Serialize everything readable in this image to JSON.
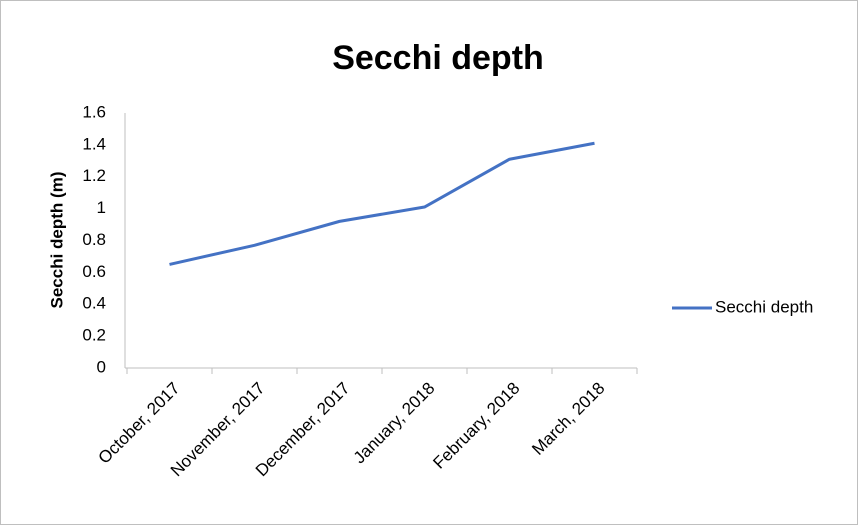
{
  "chart_data": {
    "type": "line",
    "title": "Secchi depth",
    "y_label": "Secchi depth (m)",
    "categories": [
      "October, 2017",
      "November, 2017",
      "December, 2017",
      "January, 2018",
      "February, 2018",
      "March, 2018"
    ],
    "series": [
      {
        "name": "Secchi depth",
        "color": "#4472c4",
        "values": [
          0.65,
          0.77,
          0.92,
          1.01,
          1.31,
          1.41
        ]
      }
    ],
    "ylim": [
      0,
      1.6
    ],
    "yticks": [
      0,
      0.2,
      0.4,
      0.6,
      0.8,
      1,
      1.2,
      1.4,
      1.6
    ],
    "grid": false,
    "legend": "right"
  }
}
